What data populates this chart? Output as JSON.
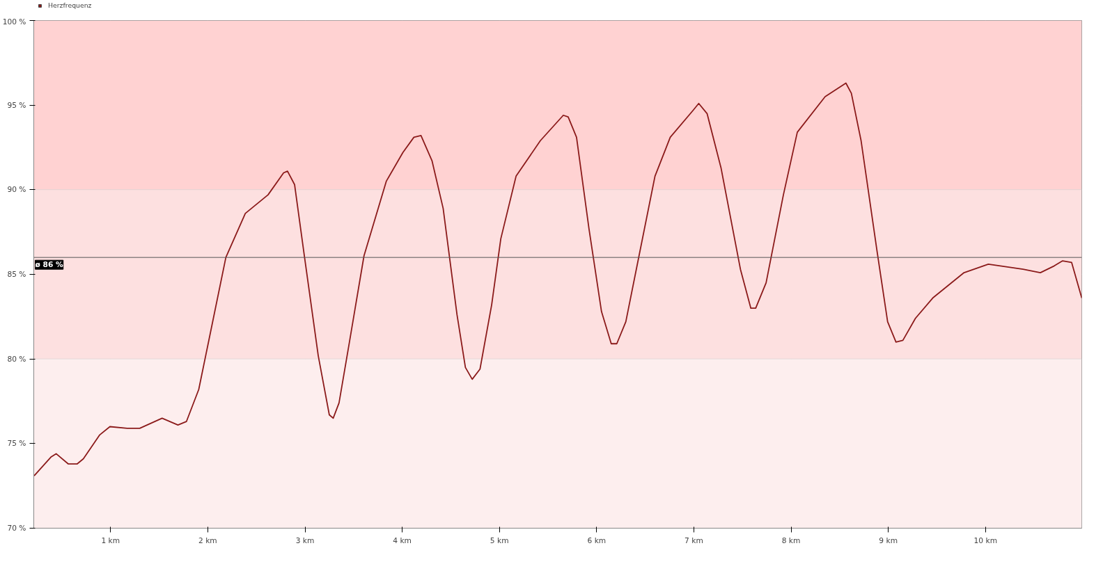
{
  "chart_data": {
    "type": "line",
    "legend": "top left",
    "grid": true,
    "marker": "none",
    "line_style": "solid",
    "xlim": [
      0.21,
      10.99
    ],
    "ylim": [
      70,
      100
    ],
    "xticks": [
      {
        "value": 1,
        "label": "1 km"
      },
      {
        "value": 2,
        "label": "2 km"
      },
      {
        "value": 3,
        "label": "3 km"
      },
      {
        "value": 4,
        "label": "4 km"
      },
      {
        "value": 5,
        "label": "5 km"
      },
      {
        "value": 6,
        "label": "6 km"
      },
      {
        "value": 7,
        "label": "7 km"
      },
      {
        "value": 8,
        "label": "8 km"
      },
      {
        "value": 9,
        "label": "9 km"
      },
      {
        "value": 10,
        "label": "10 km"
      }
    ],
    "yticks": [
      {
        "value": 70,
        "label": "70 %"
      },
      {
        "value": 75,
        "label": "75 %"
      },
      {
        "value": 80,
        "label": "80 %"
      },
      {
        "value": 85,
        "label": "85 %"
      },
      {
        "value": 90,
        "label": "90 %"
      },
      {
        "value": 95,
        "label": "95 %"
      },
      {
        "value": 100,
        "label": "100 %"
      }
    ],
    "bands": [
      {
        "axis": "y",
        "from": 90,
        "to": 100,
        "color": "#ffd2d2"
      },
      {
        "axis": "y",
        "from": 80,
        "to": 90,
        "color": "#fde0e0"
      },
      {
        "axis": "y",
        "from": 70,
        "to": 80,
        "color": "#fdeeee"
      }
    ],
    "ref_lines": [
      {
        "axis": "y",
        "value": 86,
        "label": "ø 86 %",
        "color": "#555555"
      }
    ],
    "x": [
      0.214,
      0.386,
      0.44,
      0.564,
      0.657,
      0.72,
      0.886,
      0.993,
      1.171,
      1.3,
      1.53,
      1.693,
      1.78,
      1.907,
      2.0,
      2.186,
      2.386,
      2.62,
      2.78,
      2.82,
      2.893,
      2.993,
      3.136,
      3.25,
      3.29,
      3.35,
      3.457,
      3.607,
      3.836,
      4.007,
      4.12,
      4.193,
      4.307,
      4.421,
      4.564,
      4.65,
      4.72,
      4.8,
      4.92,
      5.014,
      5.171,
      5.421,
      5.657,
      5.707,
      5.793,
      5.921,
      6.05,
      6.15,
      6.207,
      6.3,
      6.436,
      6.6,
      6.757,
      6.993,
      7.05,
      7.136,
      7.279,
      7.479,
      7.586,
      7.636,
      7.743,
      7.921,
      8.064,
      8.35,
      8.564,
      8.62,
      8.72,
      8.886,
      8.993,
      9.079,
      9.15,
      9.279,
      9.457,
      9.779,
      10.029,
      10.386,
      10.564,
      10.707,
      10.793,
      10.886,
      10.99
    ],
    "series": [
      {
        "name": "Herzfrequenz",
        "color": "#8b1a1a",
        "values": [
          73.1,
          74.2,
          74.4,
          73.8,
          73.8,
          74.1,
          75.5,
          76.0,
          75.9,
          75.9,
          76.5,
          76.1,
          76.3,
          78.2,
          80.8,
          86.0,
          88.6,
          89.7,
          91.0,
          91.1,
          90.3,
          86.1,
          80.2,
          76.7,
          76.5,
          77.4,
          81.0,
          86.1,
          90.5,
          92.2,
          93.1,
          93.2,
          91.7,
          88.9,
          82.6,
          79.5,
          78.8,
          79.4,
          83.2,
          87.1,
          90.8,
          92.9,
          94.4,
          94.3,
          93.1,
          87.7,
          82.8,
          80.9,
          80.9,
          82.2,
          86.1,
          90.8,
          93.1,
          94.7,
          95.1,
          94.5,
          91.3,
          85.3,
          83.0,
          83.0,
          84.5,
          89.7,
          93.4,
          95.5,
          96.3,
          95.7,
          92.9,
          86.3,
          82.2,
          81.0,
          81.1,
          82.4,
          83.6,
          85.1,
          85.6,
          85.3,
          85.1,
          85.5,
          85.8,
          85.7,
          83.6
        ]
      }
    ]
  }
}
